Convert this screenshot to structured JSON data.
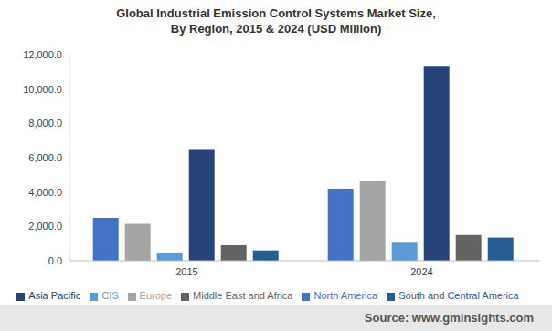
{
  "chart_data": {
    "type": "bar",
    "title": "Global Industrial Emission Control Systems Market Size, By Region, 2015 & 2024 (USD Million)",
    "source": "Source: www.gminsights.com",
    "categories": [
      "2015",
      "2024"
    ],
    "series": [
      {
        "name": "North America",
        "color": "#4472c4",
        "values": [
          2500,
          4200
        ]
      },
      {
        "name": "Europe",
        "color": "#a5a5a5",
        "values": [
          2150,
          4650
        ]
      },
      {
        "name": "CIS",
        "color": "#5b9bd5",
        "values": [
          450,
          1100
        ]
      },
      {
        "name": "Asia Pacific",
        "color": "#264478",
        "values": [
          6500,
          11350
        ]
      },
      {
        "name": "Middle East and Africa",
        "color": "#636363",
        "values": [
          900,
          1500
        ]
      },
      {
        "name": "South and Central America",
        "color": "#255e91",
        "values": [
          600,
          1350
        ]
      }
    ],
    "ylim": [
      0,
      12000
    ],
    "yticks": [
      {
        "value": 0,
        "label": "0.0"
      },
      {
        "value": 2000,
        "label": "2,000.0"
      },
      {
        "value": 4000,
        "label": "4,000.0"
      },
      {
        "value": 6000,
        "label": "6,000.0"
      },
      {
        "value": 8000,
        "label": "8,000.0"
      },
      {
        "value": 10000,
        "label": "10,000.0"
      },
      {
        "value": 12000,
        "label": "12,000.0"
      }
    ],
    "grid": false,
    "legend": "bottom"
  }
}
